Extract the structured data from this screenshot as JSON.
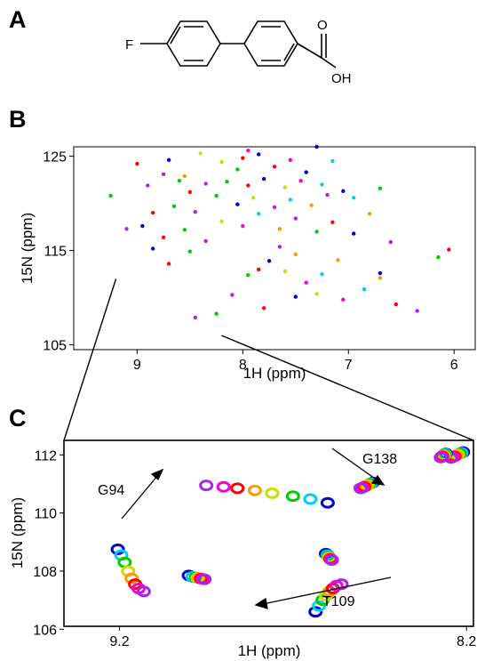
{
  "panels": {
    "a": "A",
    "b": "B",
    "c": "C"
  },
  "molecule": {
    "fluoro": "F",
    "carbonyl_o": "O",
    "hydroxyl": "OH"
  },
  "colors": {
    "gradient": [
      "#0000cc",
      "#00ccff",
      "#00cc00",
      "#ccdd00",
      "#ff9900",
      "#ff0000",
      "#ff00cc",
      "#aa22ee"
    ],
    "frame": "#000000"
  },
  "chart_data": [
    {
      "type": "scatter",
      "panel": "B",
      "xlabel": "1H (ppm)",
      "ylabel": "15N (ppm)",
      "xlim": [
        9.6,
        5.8
      ],
      "ylim": [
        126,
        104.5
      ],
      "xticks": [
        9,
        8,
        7,
        6
      ],
      "yticks": [
        105,
        115,
        125
      ],
      "zoom_box": {
        "x": [
          9.2,
          8.2
        ],
        "y": [
          106,
          112
        ]
      },
      "series": [
        {
          "points": [
            [
              8.1,
              110.3
            ],
            [
              7.95,
              112.4
            ],
            [
              7.85,
              113.0
            ],
            [
              7.75,
              113.9
            ],
            [
              7.6,
              112.8
            ],
            [
              7.4,
              111.6
            ],
            [
              7.25,
              112.5
            ],
            [
              7.1,
              114.0
            ]
          ]
        },
        {
          "points": [
            [
              8.35,
              116.0
            ],
            [
              8.55,
              117.2
            ],
            [
              8.75,
              116.4
            ],
            [
              8.95,
              117.6
            ],
            [
              8.2,
              118.1
            ],
            [
              8.0,
              117.6
            ],
            [
              7.85,
              118.9
            ],
            [
              7.65,
              117.3
            ],
            [
              7.5,
              118.4
            ],
            [
              7.3,
              117.0
            ],
            [
              7.15,
              118.0
            ],
            [
              6.95,
              116.8
            ]
          ]
        },
        {
          "points": [
            [
              8.45,
              119.1
            ],
            [
              8.65,
              119.7
            ],
            [
              8.85,
              119.0
            ],
            [
              8.05,
              119.9
            ],
            [
              7.9,
              120.6
            ],
            [
              7.7,
              119.6
            ],
            [
              7.55,
              120.4
            ],
            [
              7.35,
              119.8
            ],
            [
              7.2,
              120.9
            ],
            [
              8.25,
              120.8
            ],
            [
              8.5,
              121.2
            ],
            [
              7.05,
              121.3
            ]
          ]
        },
        {
          "points": [
            [
              8.35,
              122.1
            ],
            [
              8.15,
              122.3
            ],
            [
              7.95,
              121.9
            ],
            [
              7.8,
              122.6
            ],
            [
              7.6,
              121.7
            ],
            [
              7.45,
              122.4
            ],
            [
              7.25,
              122.0
            ],
            [
              8.55,
              122.9
            ],
            [
              8.75,
              123.1
            ],
            [
              8.05,
              123.6
            ],
            [
              7.7,
              123.9
            ],
            [
              7.4,
              123.3
            ]
          ]
        },
        {
          "points": [
            [
              8.9,
              121.9
            ],
            [
              8.6,
              122.4
            ],
            [
              8.0,
              124.8
            ],
            [
              7.85,
              125.2
            ],
            [
              8.2,
              124.4
            ],
            [
              7.55,
              124.6
            ],
            [
              6.95,
              120.6
            ],
            [
              6.8,
              118.9
            ],
            [
              6.6,
              115.9
            ],
            [
              6.7,
              121.6
            ],
            [
              6.55,
              109.3
            ],
            [
              6.7,
              112.6
            ]
          ]
        },
        {
          "points": [
            [
              8.45,
              107.9
            ],
            [
              8.25,
              108.3
            ],
            [
              7.8,
              108.9
            ],
            [
              7.5,
              110.1
            ],
            [
              7.3,
              110.4
            ],
            [
              7.05,
              109.8
            ],
            [
              6.85,
              110.9
            ],
            [
              6.7,
              112.1
            ],
            [
              6.35,
              108.6
            ],
            [
              6.15,
              114.3
            ],
            [
              6.05,
              115.1
            ],
            [
              8.85,
              115.2
            ]
          ]
        },
        {
          "points": [
            [
              9.1,
              117.3
            ],
            [
              9.25,
              120.8
            ],
            [
              9.0,
              124.2
            ],
            [
              8.7,
              124.6
            ],
            [
              8.4,
              125.3
            ],
            [
              7.95,
              125.6
            ],
            [
              7.15,
              124.5
            ],
            [
              7.5,
              114.6
            ],
            [
              7.65,
              115.4
            ],
            [
              8.5,
              114.9
            ],
            [
              8.7,
              113.6
            ],
            [
              7.3,
              126.0
            ]
          ]
        }
      ]
    },
    {
      "type": "scatter",
      "panel": "C",
      "xlabel": "1H (ppm)",
      "ylabel": "15N (ppm)",
      "xlim": [
        9.36,
        8.18
      ],
      "ylim": [
        112.5,
        106.1
      ],
      "xticks": [
        9.2,
        8.2
      ],
      "yticks": [
        106,
        108,
        110,
        112
      ],
      "annotations": [
        "G94",
        "G138",
        "T109"
      ],
      "series": [
        {
          "name": "G94",
          "points": [
            [
              9.205,
              108.75
            ],
            [
              9.195,
              108.55
            ],
            [
              9.185,
              108.3
            ],
            [
              9.175,
              108.0
            ],
            [
              9.165,
              107.75
            ],
            [
              9.155,
              107.55
            ],
            [
              9.145,
              107.4
            ],
            [
              9.13,
              107.3
            ]
          ]
        },
        {
          "name": "G138",
          "points": [
            [
              8.635,
              106.6
            ],
            [
              8.625,
              106.8
            ],
            [
              8.615,
              107.0
            ],
            [
              8.605,
              107.15
            ],
            [
              8.595,
              107.3
            ],
            [
              8.585,
              107.4
            ],
            [
              8.575,
              107.5
            ],
            [
              8.56,
              107.55
            ]
          ]
        },
        {
          "name": "T109",
          "points": [
            [
              8.6,
              110.35
            ],
            [
              8.65,
              110.48
            ],
            [
              8.7,
              110.58
            ],
            [
              8.76,
              110.68
            ],
            [
              8.81,
              110.78
            ],
            [
              8.86,
              110.85
            ],
            [
              8.9,
              110.9
            ],
            [
              8.95,
              110.95
            ]
          ]
        },
        {
          "points": [
            [
              9.0,
              107.85
            ],
            [
              8.99,
              107.8
            ],
            [
              8.98,
              107.78
            ],
            [
              8.975,
              107.76
            ],
            [
              8.97,
              107.75
            ],
            [
              8.965,
              107.74
            ],
            [
              8.96,
              107.73
            ],
            [
              8.955,
              107.72
            ]
          ]
        },
        {
          "points": [
            [
              8.605,
              108.6
            ],
            [
              8.6,
              108.55
            ],
            [
              8.598,
              108.5
            ],
            [
              8.596,
              108.47
            ],
            [
              8.594,
              108.44
            ],
            [
              8.592,
              108.42
            ],
            [
              8.59,
              108.4
            ],
            [
              8.588,
              108.38
            ]
          ]
        },
        {
          "points": [
            [
              8.47,
              111.05
            ],
            [
              8.475,
              111.02
            ],
            [
              8.48,
              110.99
            ],
            [
              8.485,
              110.96
            ],
            [
              8.49,
              110.93
            ],
            [
              8.495,
              110.9
            ],
            [
              8.5,
              110.87
            ],
            [
              8.505,
              110.85
            ]
          ]
        },
        {
          "points": [
            [
              8.21,
              112.1
            ],
            [
              8.215,
              112.07
            ],
            [
              8.22,
              112.04
            ],
            [
              8.225,
              112.01
            ],
            [
              8.23,
              111.98
            ],
            [
              8.235,
              111.95
            ],
            [
              8.24,
              111.92
            ],
            [
              8.245,
              111.9
            ]
          ]
        },
        {
          "points": [
            [
              8.26,
              112.05
            ],
            [
              8.262,
              112.03
            ],
            [
              8.264,
              112.01
            ],
            [
              8.266,
              111.99
            ],
            [
              8.268,
              111.97
            ],
            [
              8.27,
              111.95
            ],
            [
              8.272,
              111.93
            ],
            [
              8.274,
              111.91
            ]
          ]
        }
      ]
    }
  ]
}
